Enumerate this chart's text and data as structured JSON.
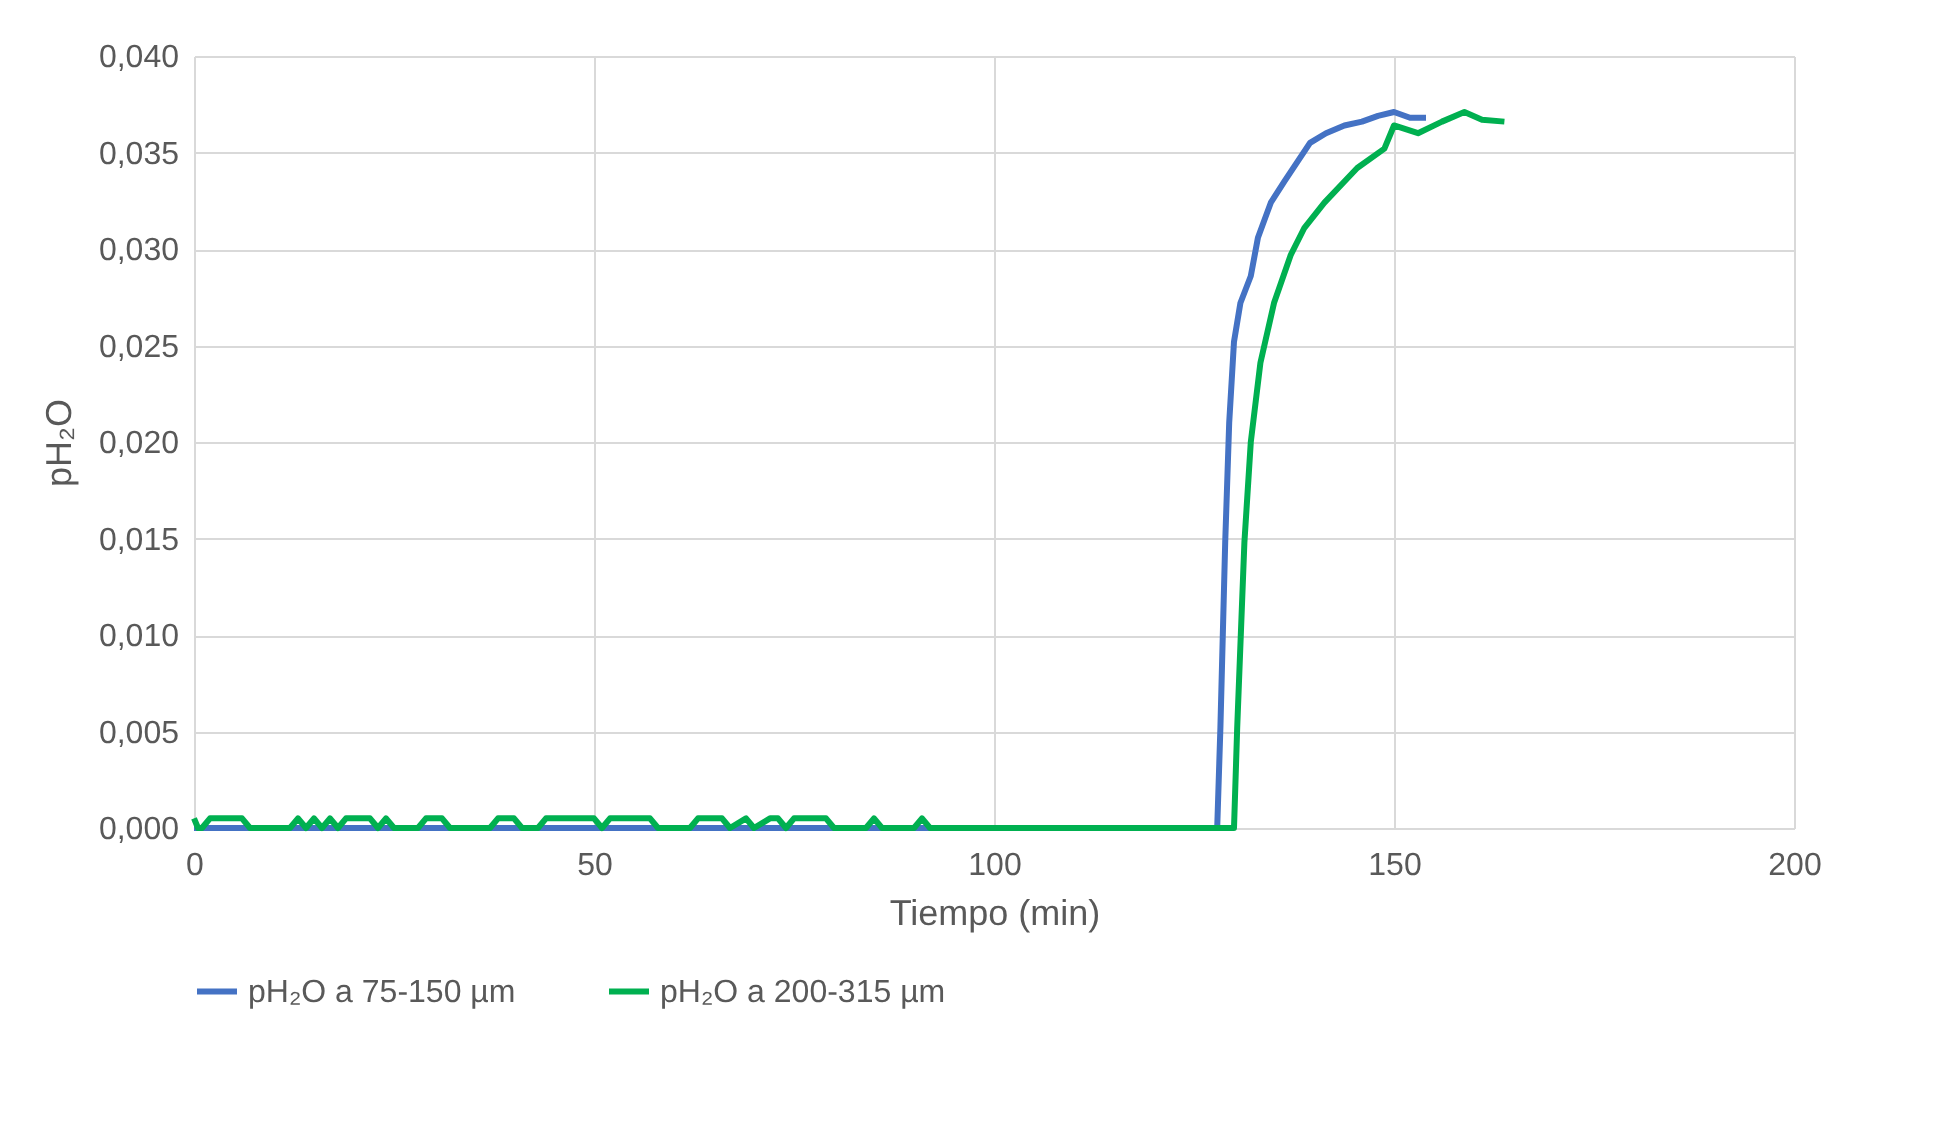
{
  "chart_data": {
    "type": "line",
    "xlabel": "Tiempo (min)",
    "ylabel": "pH₂O",
    "series": [
      {
        "name": "pH₂O a 75-150 µm",
        "color": "#4472c4",
        "x": [
          0,
          40,
          80,
          120,
          127.9,
          128.3,
          128.9,
          129.4,
          130,
          130.8,
          132.1,
          133,
          134.6,
          136.3,
          137.9,
          139.5,
          141.5,
          143.8,
          146,
          148,
          150,
          152,
          154
        ],
        "values": [
          0,
          0,
          0,
          0,
          0,
          0.0052,
          0.0148,
          0.021,
          0.0252,
          0.0272,
          0.0286,
          0.0306,
          0.0324,
          0.0335,
          0.0345,
          0.0355,
          0.036,
          0.0364,
          0.0366,
          0.0369,
          0.0371,
          0.0368,
          0.0368
        ]
      },
      {
        "name": "pH₂O a 200-315 µm",
        "color": "#00b050",
        "x": [
          0,
          0.5,
          1,
          2,
          3,
          6,
          7,
          12,
          13,
          14,
          15,
          16,
          17,
          18,
          19,
          22,
          23,
          24,
          25,
          28,
          29,
          31,
          32,
          37,
          38,
          40,
          41,
          43,
          44,
          50,
          51,
          52,
          53,
          57,
          58,
          62,
          63,
          66,
          67,
          69,
          70,
          72,
          73,
          74,
          75,
          79,
          80,
          84,
          85,
          86,
          90,
          91,
          92,
          100,
          110,
          120,
          130,
          130.4,
          131.3,
          132.1,
          133.3,
          135,
          137.1,
          138.8,
          141.3,
          143.8,
          145.4,
          148.8,
          150,
          153,
          156,
          158.8,
          161,
          163.8
        ],
        "values": [
          0.0005,
          0,
          0,
          0.0005,
          0.0005,
          0.0005,
          0,
          0,
          0.0005,
          0,
          0.0005,
          0,
          0.0005,
          0,
          0.0005,
          0.0005,
          0,
          0.0005,
          0,
          0,
          0.0005,
          0.0005,
          0,
          0,
          0.0005,
          0.0005,
          0,
          0,
          0.0005,
          0.0005,
          0,
          0.0005,
          0.0005,
          0.0005,
          0,
          0,
          0.0005,
          0.0005,
          0,
          0.0005,
          0,
          0.0005,
          0.0005,
          0,
          0.0005,
          0.0005,
          0,
          0,
          0.0005,
          0,
          0,
          0.0005,
          0,
          0,
          0,
          0,
          0,
          0.0052,
          0.0148,
          0.02,
          0.0241,
          0.0272,
          0.0297,
          0.0311,
          0.0324,
          0.0335,
          0.0342,
          0.0352,
          0.0364,
          0.036,
          0.0366,
          0.0371,
          0.0367,
          0.0366
        ]
      }
    ],
    "xlim": [
      0,
      200
    ],
    "xticks": [
      0,
      50,
      100,
      150,
      200
    ],
    "ylim": [
      0,
      0.04
    ],
    "yticks": [
      {
        "value": 0,
        "label": "0,000"
      },
      {
        "value": 0.005,
        "label": "0,005"
      },
      {
        "value": 0.01,
        "label": "0,010"
      },
      {
        "value": 0.015,
        "label": "0,015"
      },
      {
        "value": 0.02,
        "label": "0,020"
      },
      {
        "value": 0.025,
        "label": "0,025"
      },
      {
        "value": 0.03,
        "label": "0,030"
      },
      {
        "value": 0.035,
        "label": "0,035"
      },
      {
        "value": 0.04,
        "label": "0,040"
      }
    ],
    "grid": true,
    "legend": "bottom",
    "line_style": "solid",
    "marker": "none"
  }
}
